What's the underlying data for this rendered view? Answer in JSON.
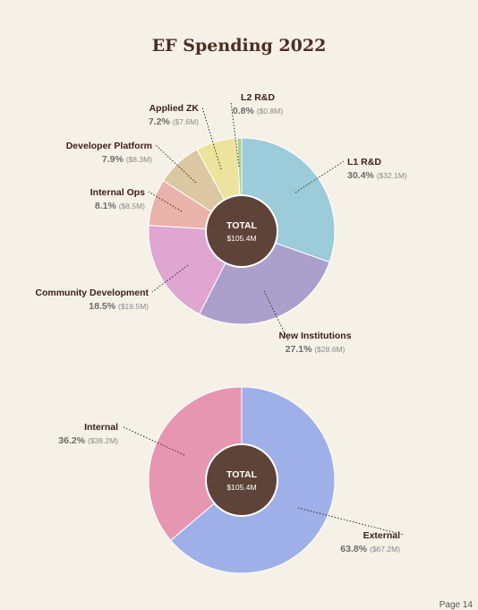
{
  "page": {
    "title": "EF Spending 2022",
    "page_number": "Page 14"
  },
  "colors": {
    "center": "#5e4338",
    "center_text": "#ffffff",
    "label_name": "#3a1f16",
    "label_pct": "#6b6b6b",
    "label_amt": "#8a8a8a"
  },
  "chart_data": [
    {
      "type": "pie",
      "variant": "donut",
      "center_label": "TOTAL",
      "center_value": "$105.4M",
      "slices": [
        {
          "name": "L1 R&D",
          "percent": 30.4,
          "amount": "$32.1M",
          "color": "#9ccbd9"
        },
        {
          "name": "New Institutions",
          "percent": 27.1,
          "amount": "$28.6M",
          "color": "#ab9fcb"
        },
        {
          "name": "Community Development",
          "percent": 18.5,
          "amount": "$19.5M",
          "color": "#dea6d1"
        },
        {
          "name": "Internal Ops",
          "percent": 8.1,
          "amount": "$8.5M",
          "color": "#e9b2aa"
        },
        {
          "name": "Developer Platform",
          "percent": 7.9,
          "amount": "$8.3M",
          "color": "#dbc7a2"
        },
        {
          "name": "Applied ZK",
          "percent": 7.2,
          "amount": "$7.6M",
          "color": "#ece39c"
        },
        {
          "name": "L2 R&D",
          "percent": 0.8,
          "amount": "$0.8M",
          "color": "#a6cf95"
        }
      ]
    },
    {
      "type": "pie",
      "variant": "donut",
      "center_label": "TOTAL",
      "center_value": "$105.4M",
      "slices": [
        {
          "name": "External",
          "percent": 63.8,
          "amount": "$67.2M",
          "color": "#9fb0e8"
        },
        {
          "name": "Internal",
          "percent": 36.2,
          "amount": "$38.2M",
          "color": "#e796b1"
        }
      ]
    }
  ]
}
